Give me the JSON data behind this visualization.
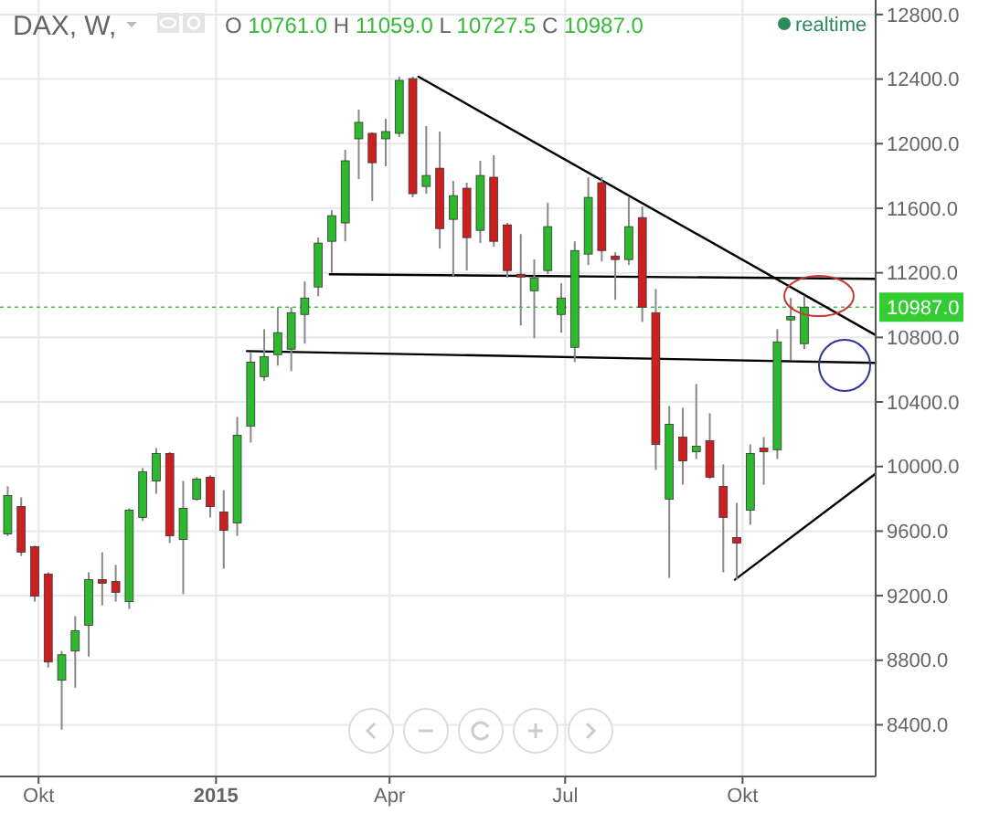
{
  "chart_data": {
    "type": "candlestick",
    "title": "DAX, W,",
    "subtitle": "O 10761.0 H 11059.0 L 10727.5 C 10987.0",
    "annotations": [
      "realtime"
    ],
    "x": [
      "2014-09-15",
      "2014-09-22",
      "2014-09-29",
      "2014-10-06",
      "2014-10-13",
      "2014-10-20",
      "2014-10-27",
      "2014-11-03",
      "2014-11-10",
      "2014-11-17",
      "2014-11-24",
      "2014-12-01",
      "2014-12-08",
      "2014-12-15",
      "2014-12-22",
      "2014-12-29",
      "2015-01-05",
      "2015-01-12",
      "2015-01-19",
      "2015-01-26",
      "2015-02-02",
      "2015-02-09",
      "2015-02-16",
      "2015-02-23",
      "2015-03-02",
      "2015-03-09",
      "2015-03-16",
      "2015-03-23",
      "2015-03-30",
      "2015-04-06",
      "2015-04-13",
      "2015-04-20",
      "2015-04-27",
      "2015-05-04",
      "2015-05-11",
      "2015-05-18",
      "2015-05-25",
      "2015-06-01",
      "2015-06-08",
      "2015-06-15",
      "2015-06-22",
      "2015-06-29",
      "2015-07-06",
      "2015-07-13",
      "2015-07-20",
      "2015-07-27",
      "2015-08-03",
      "2015-08-10",
      "2015-08-17",
      "2015-08-24",
      "2015-08-31",
      "2015-09-07",
      "2015-09-14",
      "2015-09-21",
      "2015-09-28",
      "2015-10-05",
      "2015-10-12",
      "2015-10-19",
      "2015-10-26",
      "2015-11-02"
    ],
    "ohlc": [
      [
        9582,
        9877,
        9570,
        9820
      ],
      [
        9752,
        9809,
        9446,
        9469
      ],
      [
        9503,
        9510,
        9163,
        9197
      ],
      [
        9333,
        9345,
        8755,
        8789
      ],
      [
        8676,
        8857,
        8370,
        8834
      ],
      [
        8857,
        9073,
        8630,
        8982
      ],
      [
        9016,
        9345,
        8823,
        9299
      ],
      [
        9299,
        9469,
        9140,
        9277
      ],
      [
        9288,
        9390,
        9163,
        9220
      ],
      [
        9163,
        9741,
        9118,
        9730
      ],
      [
        9685,
        9990,
        9663,
        9968
      ],
      [
        9911,
        10115,
        9831,
        10081
      ],
      [
        10081,
        10090,
        9526,
        9571
      ],
      [
        9548,
        9911,
        9209,
        9741
      ],
      [
        9798,
        9934,
        9790,
        9922
      ],
      [
        9934,
        9945,
        9685,
        9752
      ],
      [
        9718,
        9854,
        9367,
        9605
      ],
      [
        9650,
        10307,
        9571,
        10194
      ],
      [
        10251,
        10704,
        10149,
        10647
      ],
      [
        10557,
        10851,
        10530,
        10681
      ],
      [
        10693,
        10987,
        10625,
        10829
      ],
      [
        10727,
        10987,
        10591,
        10953
      ],
      [
        10942,
        11146,
        10761,
        11044
      ],
      [
        11112,
        11418,
        11055,
        11384
      ],
      [
        11395,
        11588,
        11200,
        11554
      ],
      [
        11509,
        11962,
        11395,
        11894
      ],
      [
        12030,
        12211,
        11780,
        12132
      ],
      [
        12064,
        12070,
        11645,
        11882
      ],
      [
        12030,
        12154,
        11860,
        12075
      ],
      [
        12064,
        12415,
        12041,
        12392
      ],
      [
        12403,
        12415,
        11667,
        11690
      ],
      [
        11735,
        12109,
        11690,
        11803
      ],
      [
        11848,
        12075,
        11350,
        11474
      ],
      [
        11531,
        11769,
        11180,
        11678
      ],
      [
        11724,
        11758,
        11214,
        11418
      ],
      [
        11463,
        11894,
        11384,
        11803
      ],
      [
        11792,
        11928,
        11361,
        11395
      ],
      [
        11497,
        11509,
        11169,
        11214
      ],
      [
        11191,
        11440,
        10874,
        11180
      ],
      [
        11089,
        11282,
        10795,
        11169
      ],
      [
        11214,
        11633,
        11191,
        11486
      ],
      [
        10942,
        11135,
        10829,
        11044
      ],
      [
        10738,
        11395,
        10647,
        11338
      ],
      [
        11316,
        11792,
        11248,
        11667
      ],
      [
        11758,
        11792,
        11270,
        11338
      ],
      [
        11304,
        11327,
        11033,
        11282
      ],
      [
        11282,
        11667,
        11248,
        11486
      ],
      [
        11542,
        11610,
        10896,
        10987
      ],
      [
        10953,
        11100,
        9979,
        10137
      ],
      [
        9798,
        10375,
        9310,
        10262
      ],
      [
        10183,
        10364,
        9888,
        10035
      ],
      [
        10092,
        10511,
        10047,
        10126
      ],
      [
        10160,
        10330,
        9923,
        9934
      ],
      [
        9877,
        10013,
        9345,
        9685
      ],
      [
        9560,
        9775,
        9299,
        9526
      ],
      [
        9730,
        10137,
        9639,
        10081
      ],
      [
        10115,
        10183,
        9888,
        10092
      ],
      [
        10104,
        10851,
        10047,
        10772
      ],
      [
        10908,
        11044,
        10659,
        10930
      ],
      [
        10761,
        11059,
        10727.5,
        10987
      ]
    ],
    "series": [
      {
        "type": "line",
        "color": "#000000",
        "x": [
          "2015-04-16",
          "2015-12-09"
        ],
        "values": [
          12415,
          10814
        ]
      },
      {
        "type": "line",
        "color": "#000000",
        "x": [
          "2015-03-01",
          "2015-12-09"
        ],
        "values": [
          11191,
          11163
        ]
      },
      {
        "type": "line",
        "color": "#000000",
        "x": [
          "2015-01-17",
          "2015-12-09"
        ],
        "values": [
          10715,
          10642
        ]
      },
      {
        "type": "line",
        "color": "#000000",
        "x": [
          "2015-09-27",
          "2015-12-09"
        ],
        "values": [
          9299,
          9956
        ]
      }
    ],
    "ref_lines": [
      {
        "axis": "y",
        "value": 10987,
        "label": "10987.0",
        "color": "#33cc33",
        "line_style": "dotted"
      }
    ],
    "xlim": [
      "2014-09-11",
      "2015-12-09"
    ],
    "xticks": [
      {
        "value": "2014-10-01",
        "label": "Okt"
      },
      {
        "value": "2015-01-01",
        "label": "2015"
      },
      {
        "value": "2015-04-01",
        "label": "Apr"
      },
      {
        "value": "2015-07-01",
        "label": "Jul"
      },
      {
        "value": "2015-10-01",
        "label": "Okt"
      }
    ],
    "ylim": [
      8080,
      12890
    ],
    "yticks": [
      {
        "value": 8400,
        "label": "8400.0"
      },
      {
        "value": 8800,
        "label": "8800.0"
      },
      {
        "value": 9200,
        "label": "9200.0"
      },
      {
        "value": 9600,
        "label": "9600.0"
      },
      {
        "value": 10000,
        "label": "10000.0"
      },
      {
        "value": 10400,
        "label": "10400.0"
      },
      {
        "value": 10800,
        "label": "10800.0"
      },
      {
        "value": 11200,
        "label": "11200.0"
      },
      {
        "value": 11600,
        "label": "11600.0"
      },
      {
        "value": 12000,
        "label": "12000.0"
      },
      {
        "value": 12400,
        "label": "12400.0"
      },
      {
        "value": 12800,
        "label": "12800.0"
      }
    ],
    "grid": true
  }
}
